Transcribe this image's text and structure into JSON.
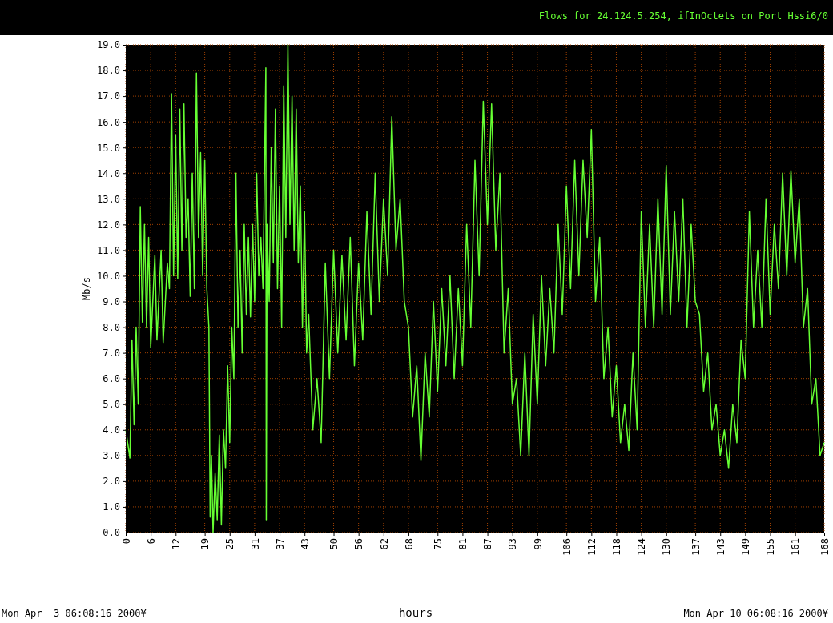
{
  "chart_data": {
    "type": "line",
    "title": "Flows for 24.124.5.254, ifInOctets on Port Hssi6/0",
    "xlabel": "hours",
    "ylabel": "Mb/s",
    "annotations": [
      "Mon Apr  3 06:08:16 2000¥",
      "Mon Apr 10 06:08:16 2000¥"
    ],
    "x": [
      0,
      1,
      1.5,
      2,
      2.5,
      3,
      3.5,
      4,
      4.5,
      5,
      5.5,
      6,
      7,
      7.5,
      8.5,
      9,
      10,
      10.5,
      11,
      11.5,
      12,
      12.5,
      13,
      13.5,
      14,
      14.5,
      15,
      15.5,
      16,
      16.5,
      17,
      17.5,
      18,
      18.5,
      19,
      19.5,
      20,
      20.3,
      20.6,
      21,
      21.5,
      22,
      22.5,
      23,
      23.5,
      24,
      24.5,
      25,
      25.5,
      26,
      26.5,
      27,
      27.5,
      28,
      28.5,
      29,
      29.5,
      30,
      30.5,
      31,
      31.5,
      32,
      32.5,
      33,
      33.7,
      33.8,
      34,
      34.5,
      35,
      35.5,
      36,
      36.5,
      37,
      37.5,
      38,
      38.5,
      39,
      39.5,
      40,
      40.5,
      41,
      41.5,
      42,
      42.5,
      43,
      43.5,
      44,
      45,
      46,
      47,
      48,
      49,
      50,
      51,
      52,
      53,
      54,
      55,
      56,
      57,
      58,
      59,
      60,
      61,
      62,
      63,
      64,
      65,
      66,
      67,
      68,
      69,
      70,
      71,
      72,
      73,
      74,
      75,
      76,
      77,
      78,
      79,
      80,
      81,
      82,
      83,
      84,
      85,
      86,
      87,
      88,
      89,
      90,
      91,
      92,
      93,
      94,
      95,
      96,
      97,
      98,
      99,
      100,
      101,
      102,
      103,
      104,
      105,
      106,
      107,
      108,
      109,
      110,
      111,
      112,
      113,
      114,
      115,
      116,
      117,
      118,
      119,
      120,
      121,
      122,
      123,
      124,
      125,
      126,
      127,
      128,
      129,
      130,
      131,
      132,
      133,
      134,
      135,
      136,
      137,
      138,
      139,
      140,
      141,
      142,
      143,
      144,
      145,
      146,
      147,
      148,
      149,
      150,
      151,
      152,
      153,
      154,
      155,
      156,
      157,
      158,
      159,
      160,
      161,
      162,
      163,
      164,
      165,
      166,
      167,
      168
    ],
    "series": [
      {
        "color": "#66ff33",
        "values": [
          4.0,
          2.9,
          7.5,
          4.2,
          8.0,
          5.0,
          12.7,
          8.2,
          12.0,
          8.0,
          11.5,
          7.2,
          10.8,
          7.5,
          11.0,
          7.4,
          10.5,
          9.5,
          17.1,
          10.0,
          15.5,
          9.9,
          16.5,
          11.0,
          16.7,
          11.5,
          13.0,
          9.2,
          14.0,
          9.5,
          17.9,
          11.5,
          14.8,
          10.0,
          14.5,
          9.5,
          8.0,
          0.6,
          3.0,
          0.0,
          2.3,
          0.5,
          3.8,
          0.3,
          4.0,
          2.5,
          6.5,
          3.5,
          8.0,
          6.0,
          14.0,
          8.0,
          11.0,
          7.0,
          12.0,
          8.5,
          11.5,
          8.4,
          12.0,
          9.0,
          14.0,
          10.0,
          11.5,
          9.5,
          18.1,
          0.5,
          12.0,
          9.0,
          15.0,
          10.5,
          16.5,
          9.5,
          13.5,
          8.0,
          17.4,
          11.5,
          19.0,
          12.0,
          17.0,
          11.0,
          16.5,
          10.5,
          13.5,
          8.0,
          12.5,
          7.0,
          8.5,
          4.0,
          6.0,
          3.5,
          10.5,
          6.0,
          11.0,
          7.0,
          10.8,
          7.5,
          11.5,
          6.5,
          10.5,
          7.5,
          12.5,
          8.5,
          14.0,
          9.0,
          13.0,
          10.0,
          16.2,
          11.0,
          13.0,
          9.0,
          8.0,
          4.5,
          6.5,
          2.8,
          7.0,
          4.5,
          9.0,
          5.5,
          9.5,
          6.5,
          10.0,
          6.0,
          9.5,
          6.5,
          12.0,
          8.0,
          14.5,
          10.0,
          16.8,
          12.0,
          16.7,
          11.0,
          14.0,
          7.0,
          9.5,
          5.0,
          6.0,
          3.0,
          7.0,
          3.0,
          8.5,
          5.0,
          10.0,
          6.5,
          9.5,
          7.0,
          12.0,
          8.5,
          13.5,
          9.5,
          14.5,
          10.0,
          14.5,
          11.5,
          15.7,
          9.0,
          11.5,
          6.0,
          8.0,
          4.5,
          6.5,
          3.5,
          5.0,
          3.2,
          7.0,
          4.0,
          12.5,
          8.0,
          12.0,
          8.0,
          13.0,
          8.5,
          14.3,
          8.5,
          12.5,
          9.0,
          13.0,
          8.0,
          12.0,
          9.0,
          8.5,
          5.5,
          7.0,
          4.0,
          5.0,
          3.0,
          4.0,
          2.5,
          5.0,
          3.5,
          7.5,
          6.0,
          12.5,
          8.0,
          11.0,
          8.0,
          13.0,
          8.5,
          12.0,
          9.5,
          14.0,
          10.0,
          14.1,
          10.5,
          13.0,
          8.0,
          9.5,
          5.0,
          6.0,
          3.0,
          3.5
        ]
      }
    ],
    "xlim": [
      0,
      168
    ],
    "ylim": [
      0,
      19
    ],
    "xticks": [
      0,
      6,
      12,
      19,
      25,
      31,
      37,
      43,
      50,
      56,
      62,
      68,
      75,
      81,
      87,
      93,
      99,
      106,
      112,
      118,
      124,
      130,
      137,
      143,
      149,
      155,
      161,
      168
    ],
    "yticks": [
      {
        "value": 0,
        "label": "0.0"
      },
      {
        "value": 1,
        "label": "1.0"
      },
      {
        "value": 2,
        "label": "2.0"
      },
      {
        "value": 3,
        "label": "3.0"
      },
      {
        "value": 4,
        "label": "4.0"
      },
      {
        "value": 5,
        "label": "5.0"
      },
      {
        "value": 6,
        "label": "6.0"
      },
      {
        "value": 7,
        "label": "7.0"
      },
      {
        "value": 8,
        "label": "8.0"
      },
      {
        "value": 9,
        "label": "9.0"
      },
      {
        "value": 10,
        "label": "10.0"
      },
      {
        "value": 11,
        "label": "11.0"
      },
      {
        "value": 12,
        "label": "12.0"
      },
      {
        "value": 13,
        "label": "13.0"
      },
      {
        "value": 14,
        "label": "14.0"
      },
      {
        "value": 15,
        "label": "15.0"
      },
      {
        "value": 16,
        "label": "16.0"
      },
      {
        "value": 17,
        "label": "17.0"
      },
      {
        "value": 18,
        "label": "18.0"
      },
      {
        "value": 19,
        "label": "19.0"
      }
    ],
    "grid": true
  }
}
